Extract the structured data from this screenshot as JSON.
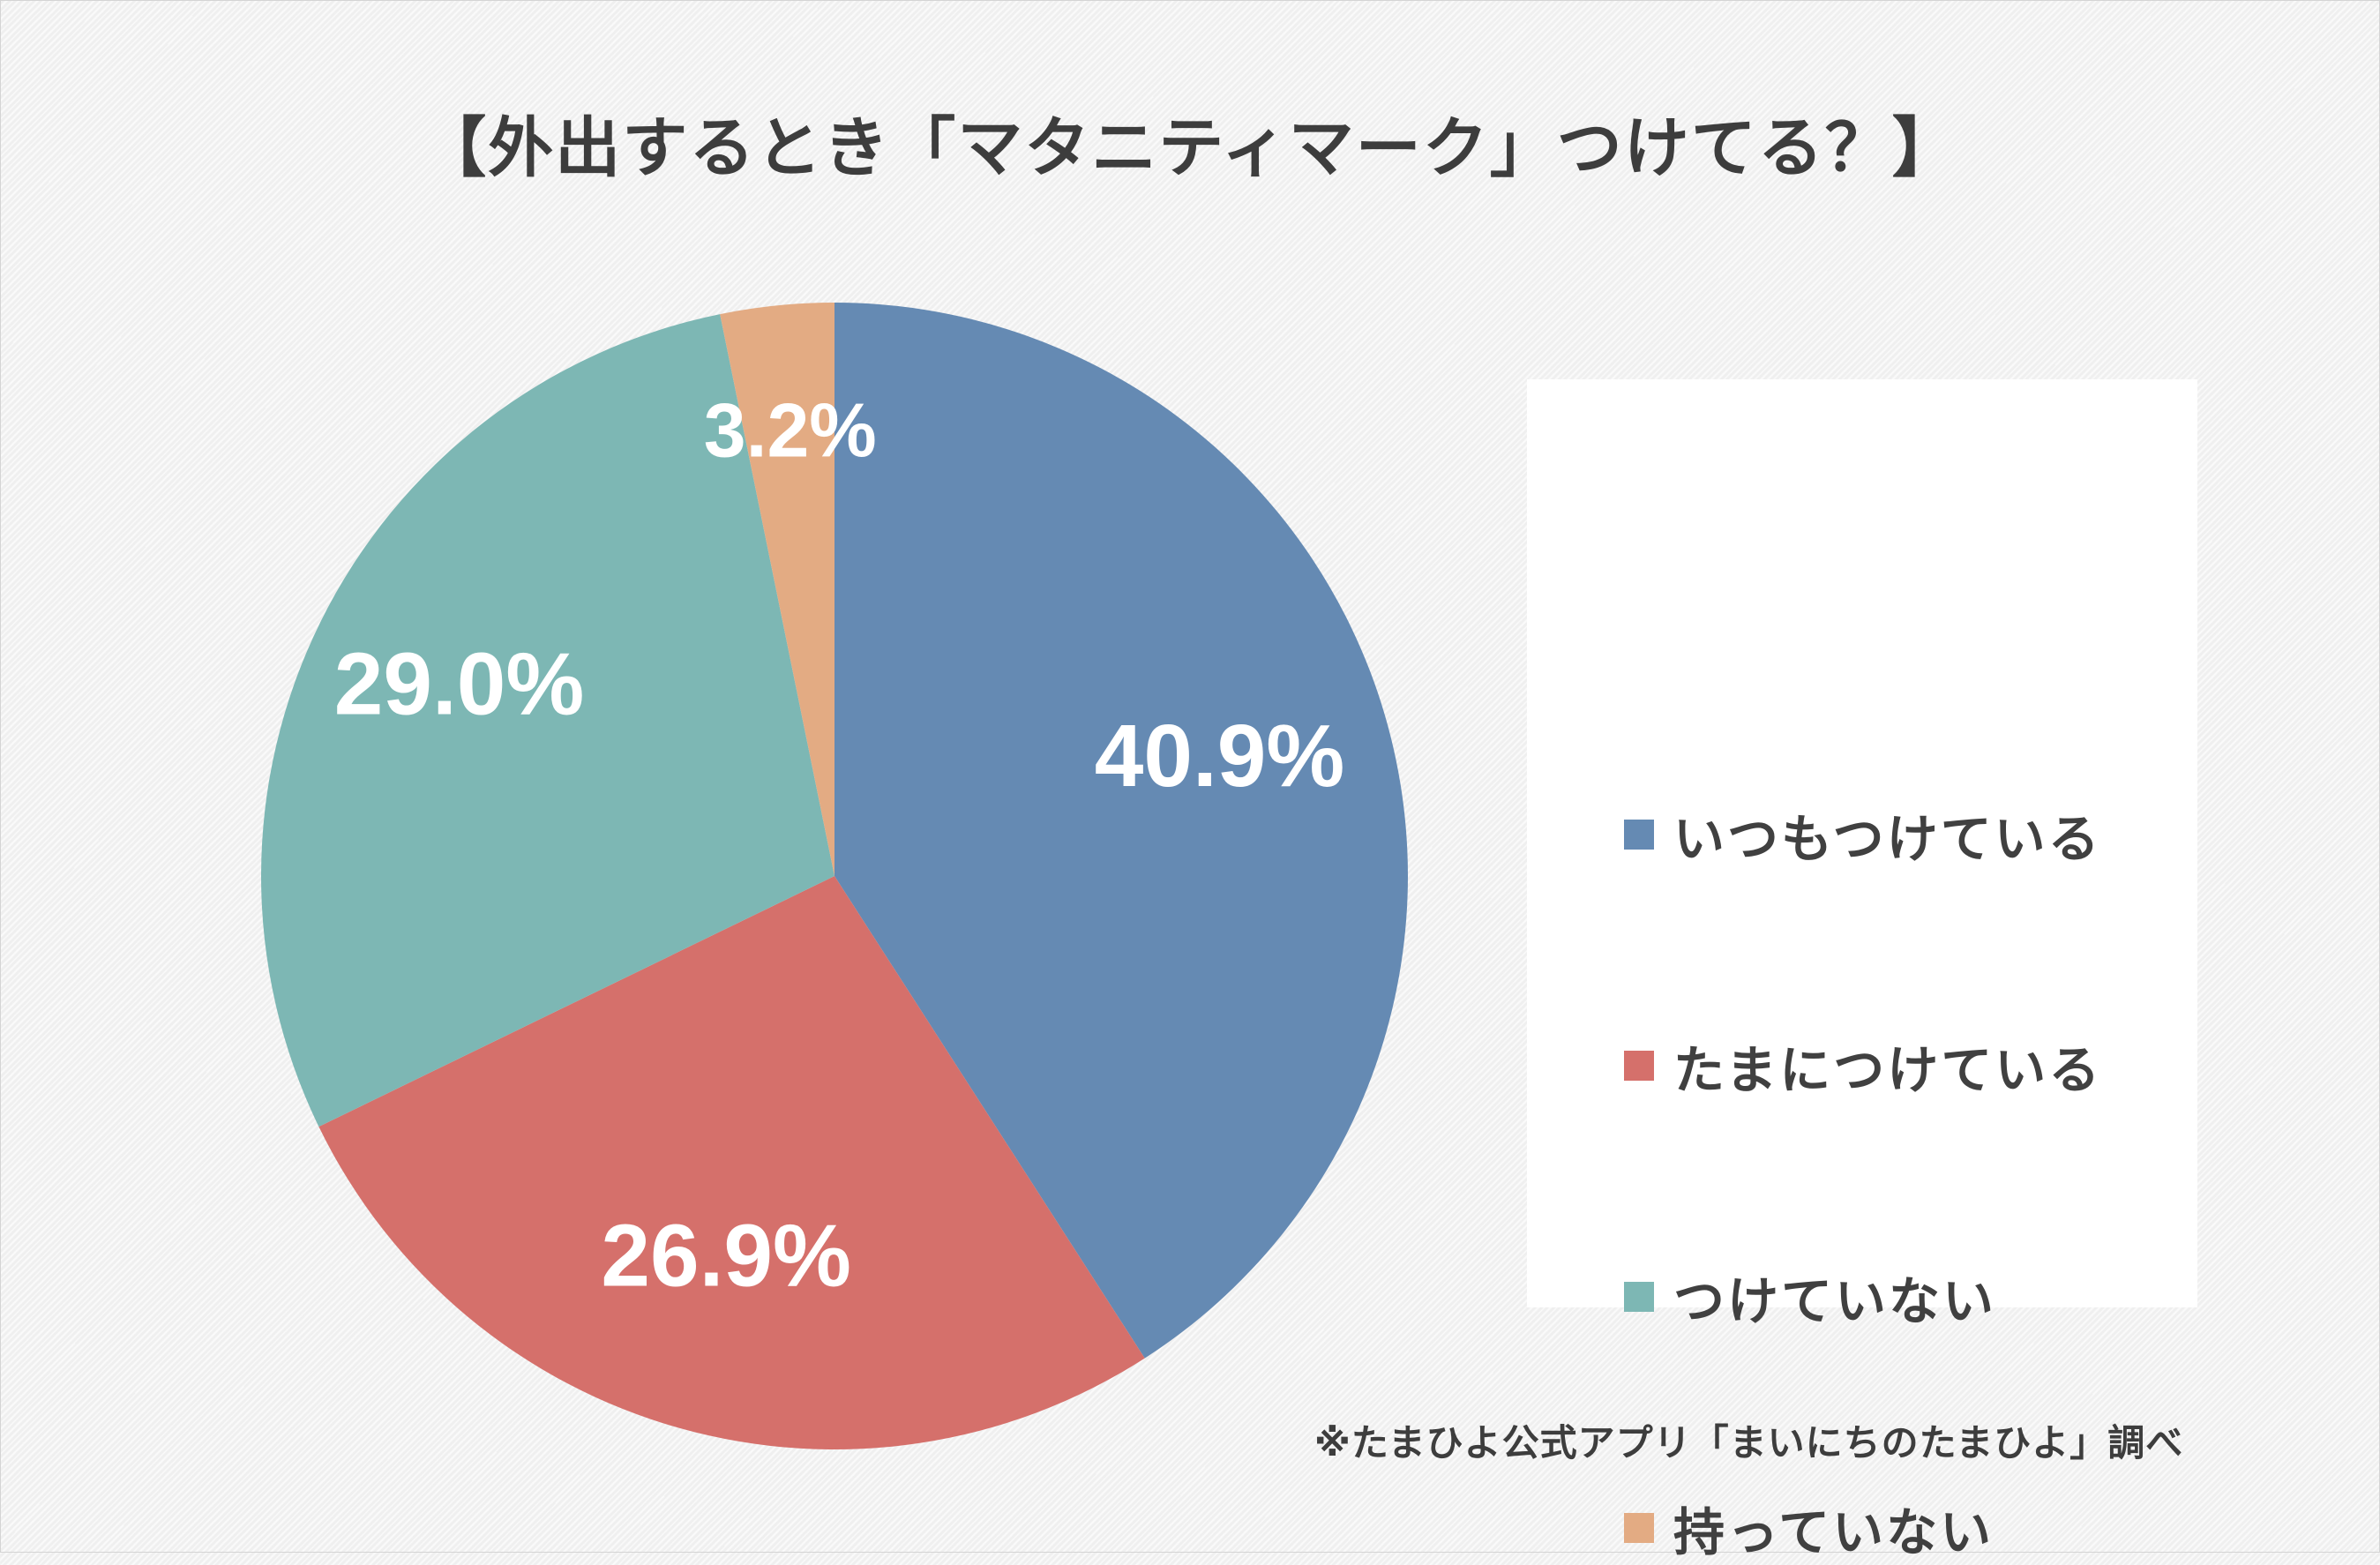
{
  "chart_data": {
    "type": "pie",
    "title": "【外出するとき「マタニティマーク」つけてる？】",
    "categories": [
      "いつもつけている",
      "たまにつけている",
      "つけていない",
      "持っていない"
    ],
    "values": [
      40.9,
      26.9,
      29.0,
      3.2
    ],
    "labels": [
      "40.9%",
      "26.9%",
      "29.0%",
      "3.2%"
    ],
    "colors": [
      "#658ab3",
      "#d5706b",
      "#7db7b4",
      "#e3ab83"
    ],
    "legend_position": "right",
    "note": "※たまひよ公式アプリ「まいにちのたまひよ」調べ"
  }
}
